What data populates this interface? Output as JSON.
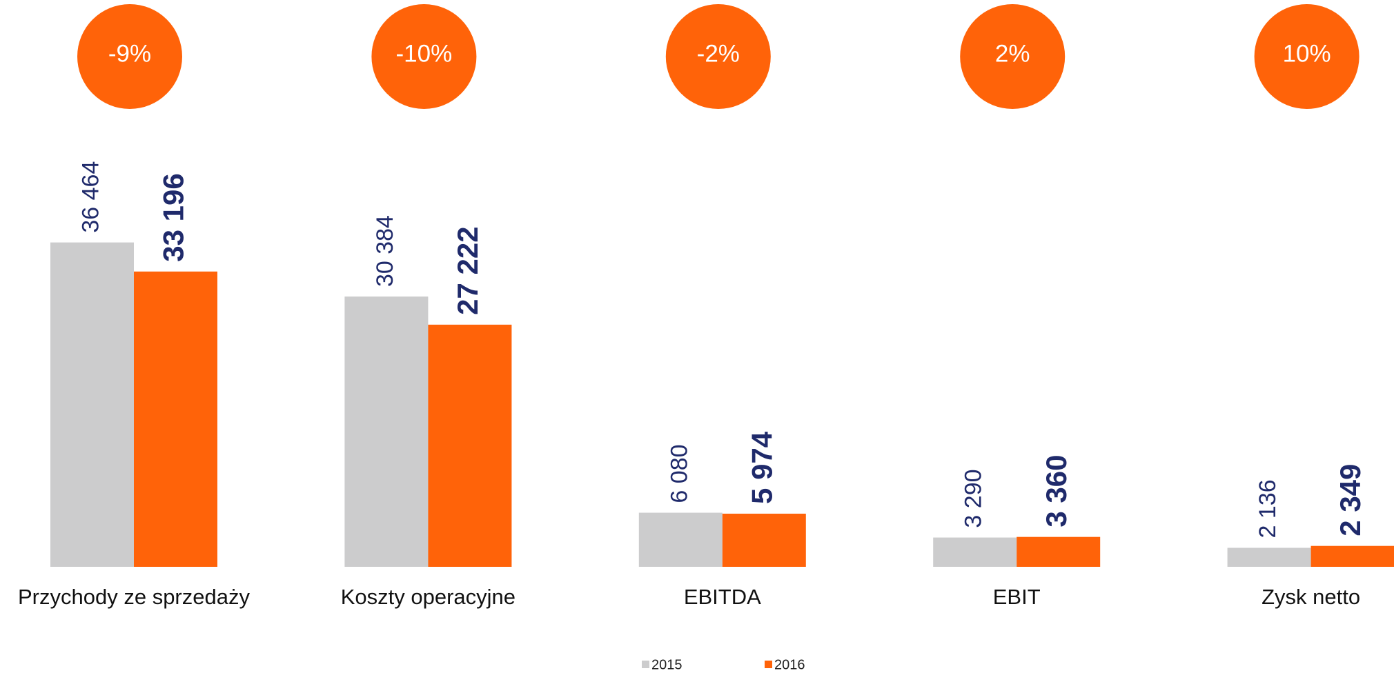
{
  "chart_data": {
    "type": "bar",
    "categories": [
      "Przychody ze sprzedaży",
      "Koszty operacyjne",
      "EBITDA",
      "EBIT",
      "Zysk netto"
    ],
    "series": [
      {
        "name": "2015",
        "color": "#cccccd",
        "values": [
          36464,
          30384,
          6080,
          3290,
          2136
        ],
        "value_labels": [
          "36 464",
          "30 384",
          "6 080",
          "3 290",
          "2 136"
        ]
      },
      {
        "name": "2016",
        "color": "#ff6309",
        "values": [
          33196,
          27222,
          5974,
          3360,
          2349
        ],
        "value_labels": [
          "33 196",
          "27 222",
          "5 974",
          "3 360",
          "2 349"
        ]
      }
    ],
    "annotations": [
      "-9%",
      "-10%",
      "-2%",
      "2%",
      "10%"
    ],
    "annotation_color": "#ff6309",
    "label_color": "#1f2a6b",
    "ylim": [
      0,
      40000
    ]
  }
}
